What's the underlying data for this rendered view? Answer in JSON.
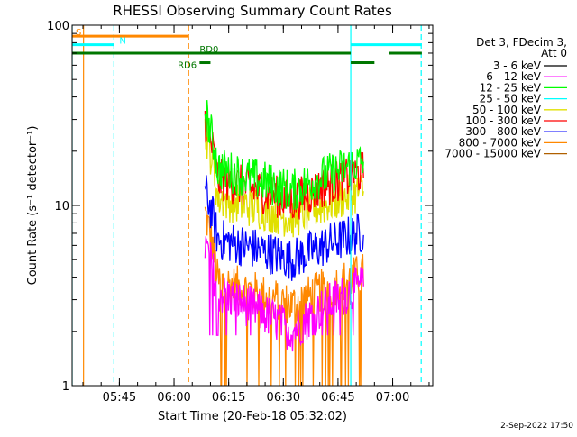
{
  "chart_data": {
    "type": "line",
    "title": "RHESSI Observing Summary Count Rates",
    "xlabel": "Start Time (20-Feb-18 05:32:02)",
    "ylabel": "Count Rate (s⁻¹ detector⁻¹)",
    "yscale": "log",
    "ylim": [
      1,
      100
    ],
    "xlim": [
      "05:32:02",
      "07:11:00"
    ],
    "x_ticks": [
      "05:45",
      "06:00",
      "06:15",
      "06:30",
      "06:45",
      "07:00"
    ],
    "y_ticks": [
      "1",
      "10",
      "100"
    ],
    "grid": false,
    "legend_position": "right",
    "legend_header": [
      "Det 3, FDecim 3,",
      "Att 0"
    ],
    "data_window": [
      "06:08:30",
      "06:52:00"
    ],
    "series": [
      {
        "name": "3 - 6 keV",
        "color": "#000000",
        "values": [],
        "visible": false
      },
      {
        "name": "6 - 12 keV",
        "color": "#ff00ff",
        "base": 3.3,
        "spike": 6,
        "dip": 2.0,
        "drop": 0.05,
        "floor": 1.9
      },
      {
        "name": "12 - 25 keV",
        "color": "#00ff00",
        "base": 16,
        "spike": 33,
        "dip": 12,
        "drop": 0.0,
        "floor": 1
      },
      {
        "name": "25 - 50 keV",
        "color": "#00ffff",
        "values": [],
        "visible": false
      },
      {
        "name": "50 - 100 keV",
        "color": "#e0e000",
        "base": 11,
        "spike": 26,
        "dip": 8.5,
        "drop": 0.0,
        "floor": 1
      },
      {
        "name": "100 - 300 keV",
        "color": "#ff0000",
        "base": 14,
        "spike": 30,
        "dip": 10.5,
        "drop": 0.0,
        "floor": 1
      },
      {
        "name": "300 - 800 keV",
        "color": "#0000ff",
        "base": 6.5,
        "spike": 12,
        "dip": 5.0,
        "drop": 0.0,
        "floor": 1
      },
      {
        "name": "800 - 7000 keV",
        "color": "#ff8800",
        "base": 3.8,
        "spike": 9,
        "dip": 2.8,
        "drop": 0.12,
        "floor": 1
      },
      {
        "name": "7000 - 15000 keV",
        "color": "#b06000",
        "values": [],
        "visible": false
      }
    ],
    "flags": [
      {
        "label": "S",
        "color": "#ff8800",
        "y_level": 87,
        "segments": [
          [
            "05:32:02",
            "06:04:00"
          ]
        ]
      },
      {
        "label": "N",
        "color": "#00ffff",
        "y_level": 78,
        "segments": [
          [
            "05:32:02",
            "05:43:30"
          ],
          [
            "06:48:30",
            "07:08:00"
          ]
        ]
      },
      {
        "label": "RD0",
        "color": "#007700",
        "y_level": 70,
        "segments": [
          [
            "05:32:02",
            "06:48:30"
          ],
          [
            "06:59:00",
            "07:08:00"
          ]
        ]
      },
      {
        "label": "RD6",
        "color": "#007700",
        "y_level": 62,
        "segments": [
          [
            "06:07:00",
            "06:10:00"
          ],
          [
            "06:48:30",
            "06:55:00"
          ]
        ]
      }
    ],
    "vlines": [
      {
        "time": "05:32:02",
        "color": "#00ffff",
        "style": "solid"
      },
      {
        "time": "05:35:10",
        "color": "#ff8800",
        "style": "solid"
      },
      {
        "time": "05:43:30",
        "color": "#00ffff",
        "style": "dashed"
      },
      {
        "time": "06:04:00",
        "color": "#ff8800",
        "style": "dashed"
      },
      {
        "time": "06:48:30",
        "color": "#00ffff",
        "style": "solid"
      },
      {
        "time": "07:07:50",
        "color": "#00ffff",
        "style": "dashed"
      }
    ]
  },
  "footer_date": "2-Sep-2022 17:50"
}
